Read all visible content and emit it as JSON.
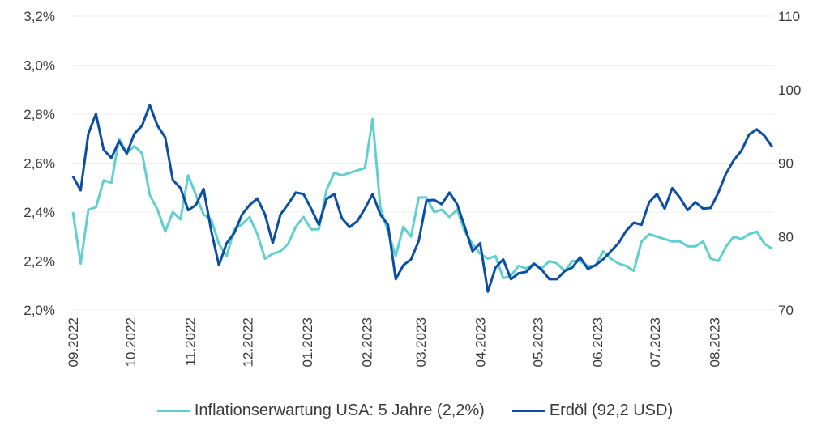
{
  "chart_data": {
    "type": "line",
    "title": "",
    "xlabel": "",
    "ylabel": "",
    "y_left": {
      "ylim": [
        2.0,
        3.2
      ],
      "ticks": [
        "2,0%",
        "2,2%",
        "2,4%",
        "2,6%",
        "2,8%",
        "3,0%",
        "3,2%"
      ],
      "tick_values": [
        2.0,
        2.2,
        2.4,
        2.6,
        2.8,
        3.0,
        3.2
      ]
    },
    "y_right": {
      "ylim": [
        70,
        110
      ],
      "ticks": [
        "70",
        "80",
        "90",
        "100",
        "110"
      ],
      "tick_values": [
        70,
        80,
        90,
        100,
        110
      ]
    },
    "x_ticks": [
      {
        "label": "09.2022",
        "date": "2022-09-01"
      },
      {
        "label": "10.2022",
        "date": "2022-10-01"
      },
      {
        "label": "11.2022",
        "date": "2022-11-01"
      },
      {
        "label": "12.2022",
        "date": "2022-12-01"
      },
      {
        "label": "01.2023",
        "date": "2023-01-01"
      },
      {
        "label": "02.2023",
        "date": "2023-02-01"
      },
      {
        "label": "03.2023",
        "date": "2023-03-01"
      },
      {
        "label": "04.2023",
        "date": "2023-04-01"
      },
      {
        "label": "05.2023",
        "date": "2023-05-01"
      },
      {
        "label": "06.2023",
        "date": "2023-06-01"
      },
      {
        "label": "07.2023",
        "date": "2023-07-01"
      },
      {
        "label": "08.2023",
        "date": "2023-08-01"
      }
    ],
    "grid": true,
    "legend_placement": "bottom",
    "x": [
      "2022-09-01",
      "2022-09-05",
      "2022-09-09",
      "2022-09-13",
      "2022-09-17",
      "2022-09-21",
      "2022-09-25",
      "2022-09-29",
      "2022-10-03",
      "2022-10-07",
      "2022-10-11",
      "2022-10-15",
      "2022-10-19",
      "2022-10-23",
      "2022-10-27",
      "2022-10-31",
      "2022-11-04",
      "2022-11-08",
      "2022-11-12",
      "2022-11-16",
      "2022-11-20",
      "2022-11-24",
      "2022-11-28",
      "2022-12-02",
      "2022-12-06",
      "2022-12-10",
      "2022-12-14",
      "2022-12-18",
      "2022-12-22",
      "2022-12-26",
      "2022-12-30",
      "2023-01-03",
      "2023-01-07",
      "2023-01-11",
      "2023-01-15",
      "2023-01-19",
      "2023-01-23",
      "2023-01-27",
      "2023-01-31",
      "2023-02-04",
      "2023-02-08",
      "2023-02-12",
      "2023-02-16",
      "2023-02-20",
      "2023-02-24",
      "2023-02-28",
      "2023-03-04",
      "2023-03-08",
      "2023-03-12",
      "2023-03-16",
      "2023-03-20",
      "2023-03-24",
      "2023-03-28",
      "2023-04-01",
      "2023-04-05",
      "2023-04-09",
      "2023-04-13",
      "2023-04-17",
      "2023-04-21",
      "2023-04-25",
      "2023-04-29",
      "2023-05-03",
      "2023-05-07",
      "2023-05-11",
      "2023-05-15",
      "2023-05-19",
      "2023-05-23",
      "2023-05-27",
      "2023-05-31",
      "2023-06-04",
      "2023-06-08",
      "2023-06-12",
      "2023-06-16",
      "2023-06-20",
      "2023-06-24",
      "2023-06-28",
      "2023-07-02",
      "2023-07-06",
      "2023-07-10",
      "2023-07-14",
      "2023-07-18",
      "2023-07-22",
      "2023-07-26",
      "2023-07-30",
      "2023-08-03",
      "2023-08-07",
      "2023-08-11",
      "2023-08-15",
      "2023-08-19",
      "2023-08-23",
      "2023-08-27",
      "2023-08-31"
    ],
    "series": [
      {
        "name": "Inflationserwartung USA: 5 Jahre (2,2%)",
        "axis": "left",
        "color": "#62cfcf",
        "values": [
          2.4,
          2.19,
          2.41,
          2.42,
          2.53,
          2.52,
          2.7,
          2.64,
          2.67,
          2.64,
          2.47,
          2.41,
          2.32,
          2.4,
          2.37,
          2.55,
          2.47,
          2.39,
          2.37,
          2.27,
          2.22,
          2.33,
          2.35,
          2.38,
          2.31,
          2.21,
          2.23,
          2.24,
          2.27,
          2.34,
          2.38,
          2.33,
          2.33,
          2.49,
          2.56,
          2.55,
          2.56,
          2.57,
          2.58,
          2.78,
          2.42,
          2.32,
          2.22,
          2.34,
          2.3,
          2.46,
          2.46,
          2.4,
          2.41,
          2.38,
          2.41,
          2.32,
          2.27,
          2.23,
          2.21,
          2.22,
          2.13,
          2.14,
          2.18,
          2.17,
          2.19,
          2.17,
          2.2,
          2.19,
          2.16,
          2.2,
          2.2,
          2.18,
          2.18,
          2.24,
          2.21,
          2.19,
          2.18,
          2.16,
          2.28,
          2.31,
          2.3,
          2.29,
          2.28,
          2.28,
          2.26,
          2.26,
          2.28,
          2.21,
          2.2,
          2.26,
          2.3,
          2.29,
          2.31,
          2.32,
          2.27,
          2.25
        ]
      },
      {
        "name": "Erdöl (92,2 USD)",
        "axis": "right",
        "color": "#0b4ea2",
        "values": [
          88.2,
          86.3,
          94.0,
          96.7,
          91.8,
          90.7,
          93.0,
          91.3,
          94.0,
          95.1,
          97.9,
          95.1,
          93.5,
          87.7,
          86.6,
          83.6,
          84.3,
          86.5,
          80.8,
          76.1,
          79.1,
          80.5,
          83.0,
          84.3,
          85.2,
          83.0,
          79.1,
          83.0,
          84.4,
          86.0,
          85.8,
          83.8,
          81.6,
          85.1,
          85.8,
          82.5,
          81.3,
          82.1,
          83.8,
          85.8,
          83.0,
          81.6,
          74.2,
          76.1,
          76.9,
          79.4,
          84.9,
          85.0,
          84.4,
          86.0,
          84.4,
          81.3,
          78.0,
          79.1,
          72.5,
          75.8,
          76.9,
          74.2,
          75.0,
          75.2,
          76.3,
          75.5,
          74.2,
          74.2,
          75.3,
          75.8,
          77.2,
          75.6,
          76.1,
          76.9,
          78.0,
          79.1,
          80.8,
          81.9,
          81.6,
          84.7,
          85.8,
          83.8,
          86.6,
          85.3,
          83.6,
          84.7,
          83.8,
          83.9,
          86.0,
          88.6,
          90.4,
          91.7,
          93.9,
          94.6,
          93.7,
          92.2
        ]
      }
    ]
  },
  "legend": {
    "items": [
      {
        "label": "Inflationserwartung USA: 5 Jahre (2,2%)",
        "color": "#62cfcf"
      },
      {
        "label": "Erdöl (92,2 USD)",
        "color": "#0b4ea2"
      }
    ]
  }
}
